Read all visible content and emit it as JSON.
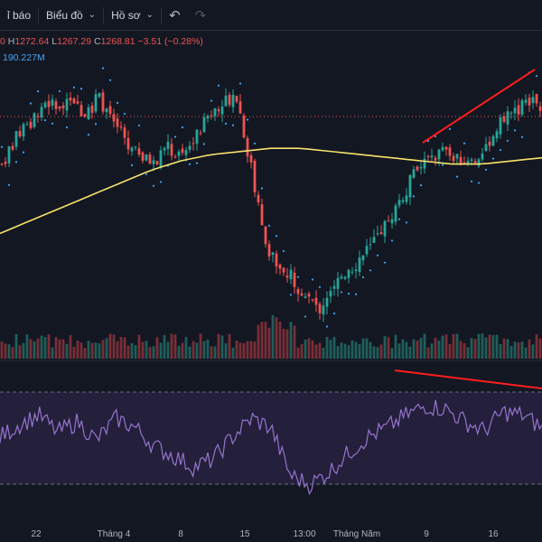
{
  "toolbar": {
    "alerts_label": "ỉ báo",
    "chart_label": "Biểu đồ",
    "profile_label": "Hồ sơ",
    "undo_icon": "undo-icon",
    "redo_icon": "redo-icon"
  },
  "legend": {
    "open_tail": "0",
    "high_label": "H",
    "high": "1272.64",
    "low_label": "L",
    "low": "1267.29",
    "close_label": "C",
    "close": "1268.81",
    "change": "−3.51 (−0.28%)",
    "volume": "190.227M"
  },
  "colors": {
    "up": "#26a69a",
    "down": "#ef5350",
    "ma": "#f7e26b",
    "sar": "#42a5f5",
    "rsi": "#9575cd",
    "trendline": "#ff1e1e"
  },
  "chart_data": [
    {
      "type": "candlestick",
      "indicators": [
        "moving average",
        "parabolic SAR",
        "volume"
      ],
      "x_ticks": [
        "22",
        "Tháng 4",
        "8",
        "15",
        "13:00",
        "Tháng Năm",
        "9",
        "16"
      ],
      "close_path": [
        1250,
        1258,
        1262,
        1270,
        1268,
        1272,
        1266,
        1271,
        1265,
        1256,
        1252,
        1250,
        1255,
        1252,
        1258,
        1266,
        1270,
        1272,
        1250,
        1226,
        1218,
        1214,
        1208,
        1204,
        1212,
        1216,
        1220,
        1226,
        1232,
        1240,
        1248,
        1252,
        1254,
        1252,
        1250,
        1256,
        1262,
        1266,
        1270,
        1269
      ],
      "ma_path": [
        1228,
        1232,
        1236,
        1240,
        1244,
        1248,
        1251,
        1253,
        1254,
        1255,
        1255,
        1254,
        1253,
        1252,
        1251,
        1250,
        1250,
        1251,
        1252
      ],
      "last_price_line": 1268.81
    },
    {
      "type": "line",
      "indicator": "RSI",
      "levels": [
        70,
        30
      ],
      "values": [
        52,
        60,
        66,
        55,
        62,
        50,
        64,
        58,
        46,
        40,
        33,
        38,
        52,
        64,
        58,
        28,
        22,
        30,
        42,
        52,
        58,
        66,
        72,
        70,
        62,
        56,
        68,
        66,
        58
      ]
    }
  ]
}
